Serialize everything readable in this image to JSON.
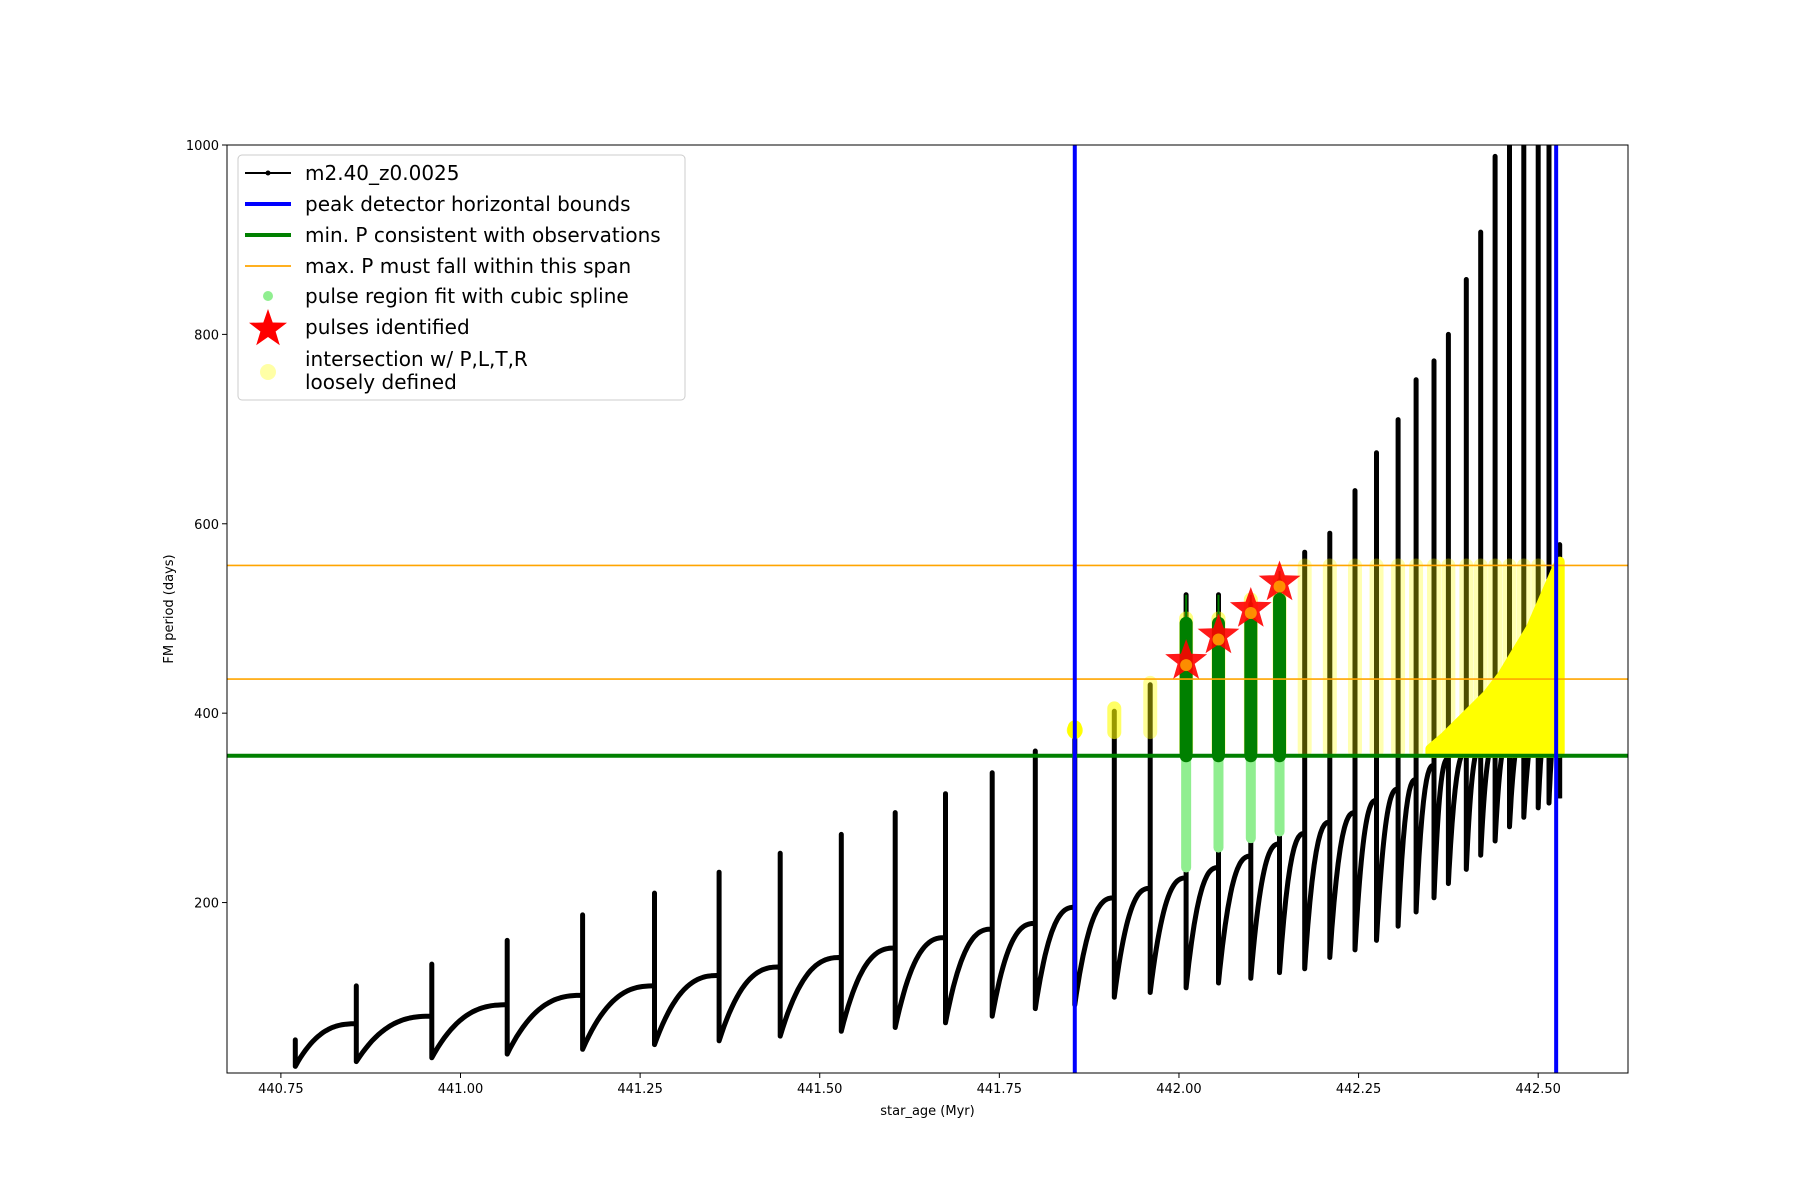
{
  "chart_data": {
    "type": "scatter",
    "title": "",
    "xlabel": "star_age (Myr)",
    "ylabel": "FM period (days)",
    "xlim": [
      440.675,
      442.625
    ],
    "ylim": [
      20,
      1000
    ],
    "xticks": [
      440.75,
      441.0,
      441.25,
      441.5,
      441.75,
      442.0,
      442.25,
      442.5
    ],
    "xtick_labels": [
      "440.75",
      "441.00",
      "441.25",
      "441.50",
      "441.75",
      "442.00",
      "442.25",
      "442.50"
    ],
    "yticks": [
      200,
      400,
      600,
      800,
      1000
    ],
    "ytick_labels": [
      "200",
      "400",
      "600",
      "800",
      "1000"
    ],
    "grid": false,
    "legend_placement": "top-left",
    "colors": {
      "track": "#000000",
      "bounds": "#0000ff",
      "min_period": "#008000",
      "max_period": "#ffa500",
      "spline": "#90ee90",
      "pulse_star": "#ff0000",
      "intersection": "#ffff00"
    },
    "legend": [
      {
        "label": "m2.40_z0.0025",
        "kind": "track"
      },
      {
        "label": "peak detector horizontal bounds",
        "kind": "bounds"
      },
      {
        "label": "min. P consistent with observations",
        "kind": "min_period"
      },
      {
        "label": "max. P must fall within this span",
        "kind": "max_period"
      },
      {
        "label": "pulse region fit with cubic spline",
        "kind": "spline"
      },
      {
        "label": "pulses identified",
        "kind": "pulse_star"
      },
      {
        "label": "intersection w/ P,L,T,R\nloosely defined",
        "kind": "intersection"
      }
    ],
    "vertical_bounds_x": [
      441.855,
      442.525
    ],
    "min_period_y": 355,
    "max_period_span_y": [
      436,
      556
    ],
    "pulses": [
      {
        "x": 440.77,
        "base": 27,
        "peak": 55,
        "pre": 0
      },
      {
        "x": 440.855,
        "base": 32,
        "peak": 112,
        "pre": 72
      },
      {
        "x": 440.96,
        "base": 36,
        "peak": 135,
        "pre": 80
      },
      {
        "x": 441.065,
        "base": 40,
        "peak": 160,
        "pre": 92
      },
      {
        "x": 441.17,
        "base": 45,
        "peak": 187,
        "pre": 102
      },
      {
        "x": 441.27,
        "base": 50,
        "peak": 210,
        "pre": 112
      },
      {
        "x": 441.36,
        "base": 54,
        "peak": 232,
        "pre": 123
      },
      {
        "x": 441.445,
        "base": 59,
        "peak": 252,
        "pre": 132
      },
      {
        "x": 441.53,
        "base": 64,
        "peak": 272,
        "pre": 142
      },
      {
        "x": 441.605,
        "base": 68,
        "peak": 295,
        "pre": 152
      },
      {
        "x": 441.675,
        "base": 73,
        "peak": 315,
        "pre": 163
      },
      {
        "x": 441.74,
        "base": 80,
        "peak": 337,
        "pre": 172
      },
      {
        "x": 441.8,
        "base": 88,
        "peak": 360,
        "pre": 178
      },
      {
        "x": 441.855,
        "base": 92,
        "peak": 380,
        "pre": 195
      },
      {
        "x": 441.91,
        "base": 100,
        "peak": 402,
        "pre": 205
      },
      {
        "x": 441.96,
        "base": 105,
        "peak": 430,
        "pre": 215
      },
      {
        "x": 442.01,
        "base": 110,
        "peak": 525,
        "pre": 226
      },
      {
        "x": 442.055,
        "base": 115,
        "peak": 525,
        "pre": 237
      },
      {
        "x": 442.1,
        "base": 120,
        "peak": 515,
        "pre": 249
      },
      {
        "x": 442.14,
        "base": 126,
        "peak": 540,
        "pre": 262
      },
      {
        "x": 442.175,
        "base": 130,
        "peak": 570,
        "pre": 273
      },
      {
        "x": 442.21,
        "base": 142,
        "peak": 590,
        "pre": 285
      },
      {
        "x": 442.245,
        "base": 150,
        "peak": 635,
        "pre": 295
      },
      {
        "x": 442.275,
        "base": 160,
        "peak": 675,
        "pre": 308
      },
      {
        "x": 442.305,
        "base": 175,
        "peak": 710,
        "pre": 320
      },
      {
        "x": 442.33,
        "base": 190,
        "peak": 752,
        "pre": 330
      },
      {
        "x": 442.355,
        "base": 205,
        "peak": 772,
        "pre": 345
      },
      {
        "x": 442.375,
        "base": 220,
        "peak": 800,
        "pre": 352
      },
      {
        "x": 442.4,
        "base": 235,
        "peak": 858,
        "pre": 360
      },
      {
        "x": 442.42,
        "base": 250,
        "peak": 908,
        "pre": 365
      },
      {
        "x": 442.44,
        "base": 265,
        "peak": 988,
        "pre": 370
      },
      {
        "x": 442.46,
        "base": 280,
        "peak": 1000,
        "pre": 378
      },
      {
        "x": 442.48,
        "base": 290,
        "peak": 1000,
        "pre": 385
      },
      {
        "x": 442.5,
        "base": 300,
        "peak": 1000,
        "pre": 392
      },
      {
        "x": 442.515,
        "base": 305,
        "peak": 1000,
        "pre": 400
      },
      {
        "x": 442.53,
        "base": 310,
        "peak": 578,
        "pre": 410
      }
    ],
    "spline_pulses": [
      {
        "x": 442.01,
        "low": 237,
        "high": 495
      },
      {
        "x": 442.055,
        "low": 258,
        "high": 495
      },
      {
        "x": 442.1,
        "low": 268,
        "high": 495
      },
      {
        "x": 442.14,
        "low": 275,
        "high": 520
      }
    ],
    "pulses_identified": [
      {
        "x": 442.01,
        "y": 455
      },
      {
        "x": 442.055,
        "y": 482
      },
      {
        "x": 442.1,
        "y": 510
      },
      {
        "x": 442.14,
        "y": 538
      }
    ],
    "intersection_columns": [
      {
        "x": 441.855,
        "low": 380,
        "high": 385,
        "strength": 1.0
      },
      {
        "x": 441.91,
        "low": 380,
        "high": 405,
        "strength": 0.6
      },
      {
        "x": 441.96,
        "low": 380,
        "high": 432,
        "strength": 0.4
      },
      {
        "x": 442.01,
        "low": 360,
        "high": 500,
        "strength": 0.5
      },
      {
        "x": 442.055,
        "low": 360,
        "high": 500,
        "strength": 0.5
      },
      {
        "x": 442.1,
        "low": 360,
        "high": 520,
        "strength": 0.5
      },
      {
        "x": 442.14,
        "low": 360,
        "high": 540,
        "strength": 0.5
      },
      {
        "x": 442.175,
        "low": 360,
        "high": 556,
        "strength": 0.3
      },
      {
        "x": 442.21,
        "low": 360,
        "high": 556,
        "strength": 0.3
      },
      {
        "x": 442.245,
        "low": 360,
        "high": 556,
        "strength": 0.3
      },
      {
        "x": 442.275,
        "low": 360,
        "high": 556,
        "strength": 0.3
      },
      {
        "x": 442.305,
        "low": 360,
        "high": 556,
        "strength": 0.3
      },
      {
        "x": 442.33,
        "low": 360,
        "high": 556,
        "strength": 0.3
      },
      {
        "x": 442.355,
        "low": 360,
        "high": 556,
        "strength": 0.3
      },
      {
        "x": 442.375,
        "low": 360,
        "high": 556,
        "strength": 0.3
      },
      {
        "x": 442.4,
        "low": 360,
        "high": 556,
        "strength": 0.3
      },
      {
        "x": 442.42,
        "low": 360,
        "high": 556,
        "strength": 0.3
      },
      {
        "x": 442.44,
        "low": 360,
        "high": 556,
        "strength": 0.3
      },
      {
        "x": 442.46,
        "low": 360,
        "high": 556,
        "strength": 0.3
      },
      {
        "x": 442.48,
        "low": 360,
        "high": 556,
        "strength": 0.3
      },
      {
        "x": 442.5,
        "low": 360,
        "high": 556,
        "strength": 0.3
      }
    ],
    "intersection_dense_region": {
      "x": [
        442.35,
        442.37,
        442.39,
        442.41,
        442.43,
        442.45,
        442.47,
        442.49,
        442.51,
        442.53
      ],
      "y_top": [
        362,
        375,
        390,
        405,
        420,
        440,
        465,
        490,
        525,
        560
      ],
      "y_bottom": 358
    }
  }
}
